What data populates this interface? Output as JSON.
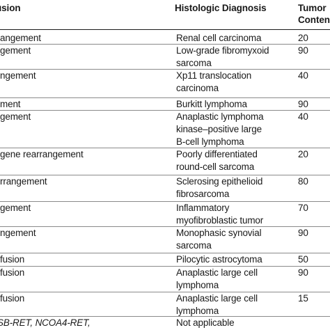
{
  "header": {
    "col1": "usion",
    "col2": "Histologic Diagnosis",
    "col3_line1": "Tumor",
    "col3_line2": "Content"
  },
  "rows": [
    {
      "fusion": "angement",
      "diagnosis": [
        "Renal cell carcinoma"
      ],
      "content": "20"
    },
    {
      "fusion": "gement",
      "diagnosis": [
        "Low-grade fibromyxoid",
        "sarcoma"
      ],
      "content": "90"
    },
    {
      "fusion": "ngement",
      "diagnosis": [
        "Xp11 translocation",
        "carcinoma"
      ],
      "content": "40"
    },
    {
      "fusion": "ment",
      "diagnosis": [
        "Burkitt lymphoma"
      ],
      "content": "90"
    },
    {
      "fusion": "gement",
      "diagnosis": [
        "Anaplastic lymphoma",
        "kinase–positive large",
        "B-cell lymphoma"
      ],
      "content": "40"
    },
    {
      "fusion": "gene rearrangement",
      "diagnosis": [
        "Poorly differentiated",
        "round-cell sarcoma"
      ],
      "content": "20"
    },
    {
      "fusion": "rrangement",
      "diagnosis": [
        "Sclerosing epithelioid",
        "fibrosarcoma"
      ],
      "content": "80"
    },
    {
      "fusion": "gement",
      "diagnosis": [
        "Inflammatory",
        "myofibroblastic tumor"
      ],
      "content": "70"
    },
    {
      "fusion": "ngement",
      "diagnosis": [
        "Monophasic synovial",
        "sarcoma"
      ],
      "content": "90"
    },
    {
      "fusion": "fusion",
      "diagnosis": [
        "Pilocytic astrocytoma"
      ],
      "content": "50"
    },
    {
      "fusion": "fusion",
      "diagnosis": [
        "Anaplastic large cell",
        "lymphoma"
      ],
      "content": "90"
    },
    {
      "fusion": "fusion",
      "diagnosis": [
        "Anaplastic large cell",
        "lymphoma"
      ],
      "content": "15"
    },
    {
      "fusion": "SB-RET, NCOA4-RET,",
      "diagnosis": [
        "Not applicable"
      ],
      "content": ""
    }
  ]
}
